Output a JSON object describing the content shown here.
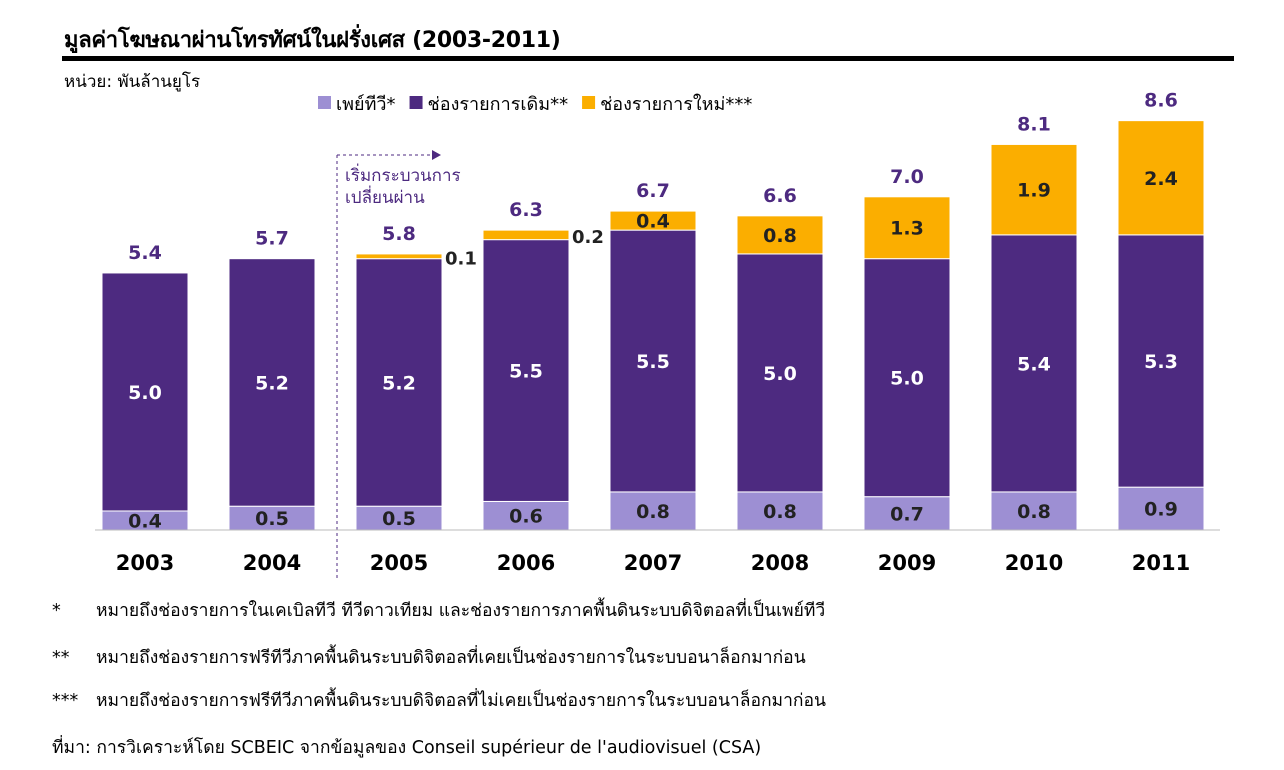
{
  "title": "มูลค่าโฆษณาผ่านโทรทัศน์ในฝรั่งเศส (2003-2011)",
  "unit": "หน่วย: พันล้านยูโร",
  "annotation": {
    "line1": "เริ่มกระบวนการ",
    "line2": "เปลี่ยนผ่าน"
  },
  "colors": {
    "paytv": "#9d8fd3",
    "existing": "#4d2a80",
    "new": "#fbae00",
    "label_purple": "#4d2a80"
  },
  "chart_data": {
    "type": "bar",
    "stacked": true,
    "title": "มูลค่าโฆษณาผ่านโทรทัศน์ในฝรั่งเศส (2003-2011)",
    "ylabel": "หน่วย: พันล้านยูโร",
    "categories": [
      "2003",
      "2004",
      "2005",
      "2006",
      "2007",
      "2008",
      "2009",
      "2010",
      "2011"
    ],
    "series": [
      {
        "name": "เพย์ทีวี*",
        "values": [
          0.4,
          0.5,
          0.5,
          0.6,
          0.8,
          0.8,
          0.7,
          0.8,
          0.9
        ]
      },
      {
        "name": "ช่องรายการเดิม**",
        "values": [
          5.0,
          5.2,
          5.2,
          5.5,
          5.5,
          5.0,
          5.0,
          5.4,
          5.3
        ]
      },
      {
        "name": "ช่องรายการใหม่***",
        "values": [
          null,
          null,
          0.1,
          0.2,
          0.4,
          0.8,
          1.3,
          1.9,
          2.4
        ]
      }
    ],
    "totals": [
      "5.4",
      "5.7",
      "5.8",
      "6.3",
      "6.7",
      "6.6",
      "7.0",
      "8.1",
      "8.6"
    ],
    "ylim": [
      0,
      9
    ],
    "grid": false,
    "legend": "top"
  },
  "footnotes": [
    {
      "marker": "*",
      "text": "หมายถึงช่องรายการในเคเบิลทีวี ทีวีดาวเทียม และช่องรายการภาคพื้นดินระบบดิจิตอลที่เป็นเพย์ทีวี"
    },
    {
      "marker": "**",
      "text": "หมายถึงช่องรายการฟรีทีวีภาคพื้นดินระบบดิจิตอลที่เคยเป็นช่องรายการในระบบอนาล็อกมาก่อน"
    },
    {
      "marker": "***",
      "text": "หมายถึงช่องรายการฟรีทีวีภาคพื้นดินระบบดิจิตอลที่ไม่เคยเป็นช่องรายการในระบบอนาล็อกมาก่อน"
    }
  ],
  "source": "ที่มา: การวิเคราะห์โดย SCBEIC จากข้อมูลของ Conseil supérieur de l'audiovisuel (CSA)"
}
